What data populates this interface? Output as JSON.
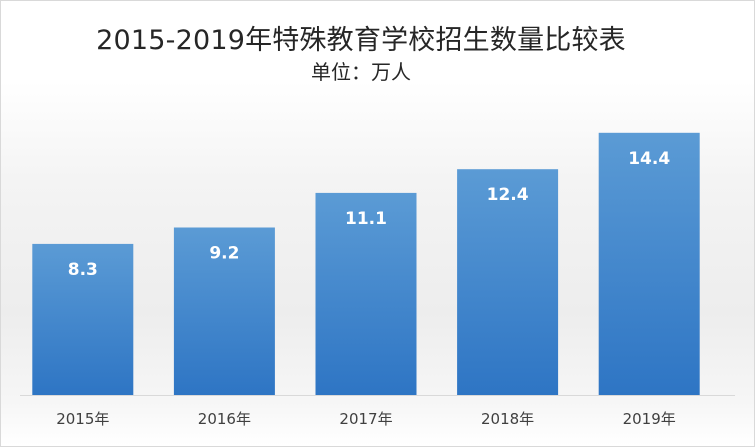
{
  "chart_data": {
    "type": "bar",
    "title": "2015-2019年特殊教育学校招生数量比较表",
    "subtitle": "单位：万人",
    "categories": [
      "2015年",
      "2016年",
      "2017年",
      "2018年",
      "2019年"
    ],
    "values": [
      8.3,
      9.2,
      11.1,
      12.4,
      14.4
    ],
    "ylim": [
      0,
      17.3
    ],
    "grid": false,
    "legend": "none",
    "bar_color_top": "#5b9bd5",
    "bar_color_bottom": "#2e75c4",
    "label_color": "#ffffff"
  }
}
